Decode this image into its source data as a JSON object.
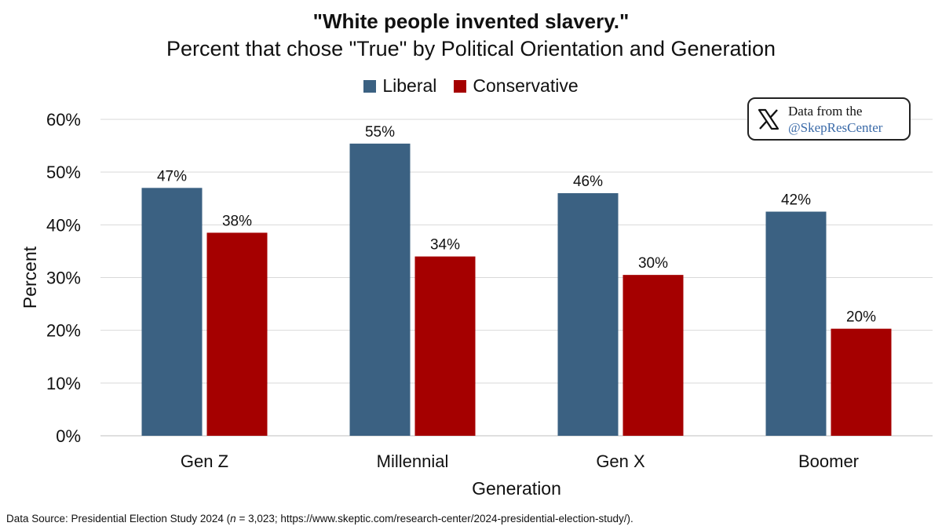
{
  "chart_data": {
    "type": "bar",
    "title": "\"White people invented slavery.\"",
    "subtitle": "Percent that chose \"True\" by Political Orientation and Generation",
    "xlabel": "Generation",
    "ylabel": "Percent",
    "categories": [
      "Gen Z",
      "Millennial",
      "Gen X",
      "Boomer"
    ],
    "series": [
      {
        "name": "Liberal",
        "color": "#3b6182",
        "values": [
          47,
          55.4,
          46,
          42.5
        ],
        "labels": [
          "47%",
          "55%",
          "46%",
          "42%"
        ]
      },
      {
        "name": "Conservative",
        "color": "#a50000",
        "values": [
          38.5,
          34,
          30.5,
          20.3
        ],
        "labels": [
          "38%",
          "34%",
          "30%",
          "20%"
        ]
      }
    ],
    "ylim": [
      0,
      60
    ],
    "yticks": [
      "0%",
      "10%",
      "20%",
      "30%",
      "40%",
      "50%",
      "60%"
    ],
    "grid": true,
    "legend_position": "top"
  },
  "credit": {
    "line1": "Data from the",
    "line2": "@SkepResCenter",
    "icon": "x-logo-icon"
  },
  "source": {
    "prefix": "Data Source: Presidential Election Study 2024 (",
    "n_symbol": "n",
    "suffix": " = 3,023; https://www.skeptic.com/research-center/2024-presidential-election-study/)."
  }
}
